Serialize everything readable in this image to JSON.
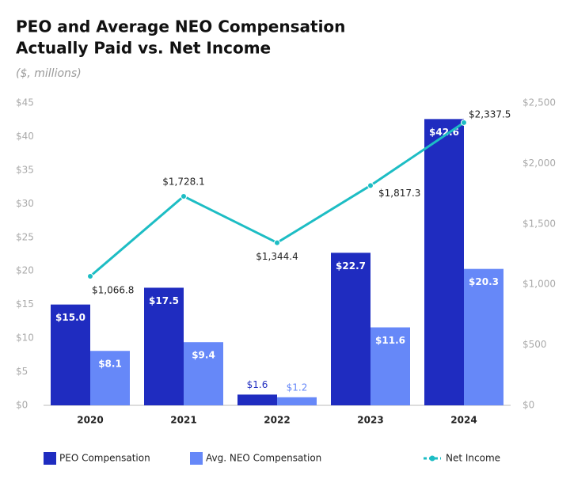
{
  "chart_data": {
    "type": "bar",
    "title": [
      "PEO and Average NEO Compensation",
      "Actually Paid vs. Net Income"
    ],
    "subtitle": "($, millions)",
    "categories": [
      "2020",
      "2021",
      "2022",
      "2023",
      "2024"
    ],
    "series": [
      {
        "name": "PEO Compensation",
        "color": "#1f2cc0",
        "values": [
          15.0,
          17.5,
          1.6,
          22.7,
          42.6
        ],
        "value_labels": [
          "$15.0",
          "$17.5",
          "$1.6",
          "$22.7",
          "$42.6"
        ]
      },
      {
        "name": "Avg. NEO Compensation",
        "color": "#6688f8",
        "values": [
          8.1,
          9.4,
          1.2,
          11.6,
          20.3
        ],
        "value_labels": [
          "$8.1",
          "$9.4",
          "$1.2",
          "$11.6",
          "$20.3"
        ]
      },
      {
        "name": "Net Income",
        "type": "line",
        "axis": "y2",
        "color": "#1dbdc4",
        "values": [
          1066.8,
          1728.1,
          1344.4,
          1817.3,
          2337.5
        ],
        "value_labels": [
          "$1,066.8",
          "$1,728.1",
          "$1,344.4",
          "$1,817.3",
          "$2,337.5"
        ]
      }
    ],
    "ylim": [
      0,
      45
    ],
    "yticks": [
      {
        "value": 0,
        "label": "$0"
      },
      {
        "value": 5,
        "label": "$5"
      },
      {
        "value": 10,
        "label": "$10"
      },
      {
        "value": 15,
        "label": "$15"
      },
      {
        "value": 20,
        "label": "$20"
      },
      {
        "value": 25,
        "label": "$25"
      },
      {
        "value": 30,
        "label": "$30"
      },
      {
        "value": 35,
        "label": "$35"
      },
      {
        "value": 40,
        "label": "$40"
      },
      {
        "value": 45,
        "label": "$45"
      }
    ],
    "y2lim": [
      0,
      2500
    ],
    "y2ticks": [
      {
        "value": 0,
        "label": "$0"
      },
      {
        "value": 500,
        "label": "$500"
      },
      {
        "value": 1000,
        "label": "$1,000"
      },
      {
        "value": 1500,
        "label": "$1,500"
      },
      {
        "value": 2000,
        "label": "$2,000"
      },
      {
        "value": 2500,
        "label": "$2,500"
      }
    ],
    "grid": false
  }
}
